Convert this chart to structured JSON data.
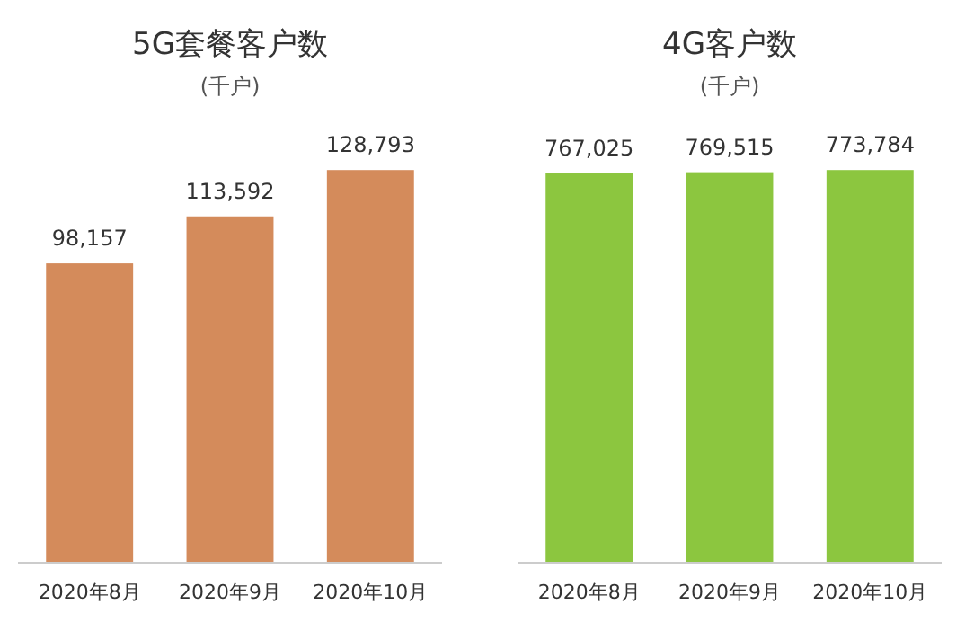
{
  "chart_data": [
    {
      "type": "bar",
      "title": "5G套餐客户数",
      "subtitle": "(千户)",
      "categories": [
        "2020年8月",
        "2020年9月",
        "2020年10月"
      ],
      "values": [
        98157,
        113592,
        128793
      ],
      "value_labels": [
        "98,157",
        "113,592",
        "128,793"
      ],
      "color": "#d48b5b",
      "tick_labels": "x"
    },
    {
      "type": "bar",
      "title": "4G客户数",
      "subtitle": "(千户)",
      "categories": [
        "2020年8月",
        "2020年9月",
        "2020年10月"
      ],
      "values": [
        767025,
        769515,
        773784
      ],
      "value_labels": [
        "767,025",
        "769,515",
        "773,784"
      ],
      "color": "#8cc63f",
      "tick_labels": "x"
    }
  ]
}
